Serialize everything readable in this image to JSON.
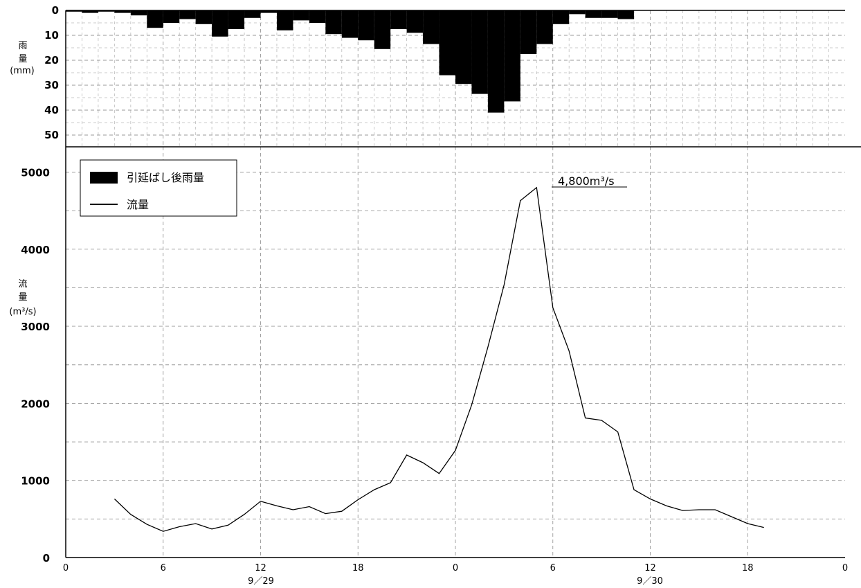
{
  "chart_data": [
    {
      "type": "bar",
      "name": "rainfall",
      "ylabel": [
        "雨",
        "量",
        "(mm)"
      ],
      "ylim": [
        0,
        55
      ],
      "y_inverted": true,
      "yticks": [
        "0",
        "10",
        "20",
        "30",
        "40",
        "50"
      ],
      "hours": [
        1,
        2,
        3,
        4,
        5,
        6,
        7,
        8,
        9,
        10,
        11,
        12,
        13,
        14,
        15,
        16,
        17,
        18,
        19,
        20,
        21,
        22,
        23,
        24,
        25,
        26,
        27,
        28,
        29,
        30,
        31,
        32,
        33,
        34,
        35,
        36
      ],
      "values": [
        0.5,
        1,
        0.5,
        1,
        2,
        7,
        5,
        3.5,
        5.5,
        10.5,
        7.5,
        3,
        1,
        8,
        4,
        5,
        9.5,
        11,
        12,
        15.5,
        7.5,
        9,
        13.5,
        26,
        29.5,
        33.5,
        41,
        36.5,
        17.5,
        13.5,
        5.5,
        1.5,
        3,
        3,
        3.5,
        0
      ],
      "series": [
        {
          "name": "引延ばし後雨量",
          "color": "#000000"
        }
      ]
    },
    {
      "type": "line",
      "name": "flow",
      "ylabel": [
        "流",
        "量",
        "(m³/s)"
      ],
      "ylim": [
        0,
        5000
      ],
      "yticks": [
        "0",
        "1000",
        "2000",
        "3000",
        "4000",
        "5000"
      ],
      "x_hours": [
        3,
        4,
        5,
        6,
        7,
        8,
        9,
        10,
        11,
        12,
        13,
        14,
        15,
        16,
        17,
        18,
        19,
        20,
        21,
        22,
        23,
        24,
        25,
        26,
        27,
        28,
        29,
        30,
        31,
        32,
        33,
        34,
        35,
        36,
        37,
        38,
        39,
        40,
        41,
        42,
        43
      ],
      "values": [
        760,
        560,
        430,
        340,
        400,
        440,
        370,
        420,
        560,
        730,
        670,
        620,
        660,
        570,
        600,
        750,
        880,
        970,
        1330,
        1230,
        1090,
        1390,
        1980,
        2730,
        3540,
        4630,
        4800,
        3240,
        2680,
        1810,
        1780,
        1630,
        880,
        760,
        670,
        610,
        620,
        620,
        530,
        440,
        390
      ],
      "series": [
        {
          "name": "流量",
          "color": "#000000"
        }
      ],
      "annotation": {
        "text": "4,800m³/s",
        "x_hour": 29,
        "y": 4800
      }
    }
  ],
  "x_axis": {
    "ticks": [
      "0",
      "6",
      "12",
      "18",
      "0",
      "6",
      "12",
      "18",
      "0"
    ],
    "dates": [
      "9／29",
      "9／30"
    ]
  },
  "legend": {
    "rain_label": "引延ばし後雨量",
    "flow_label": "流量"
  }
}
